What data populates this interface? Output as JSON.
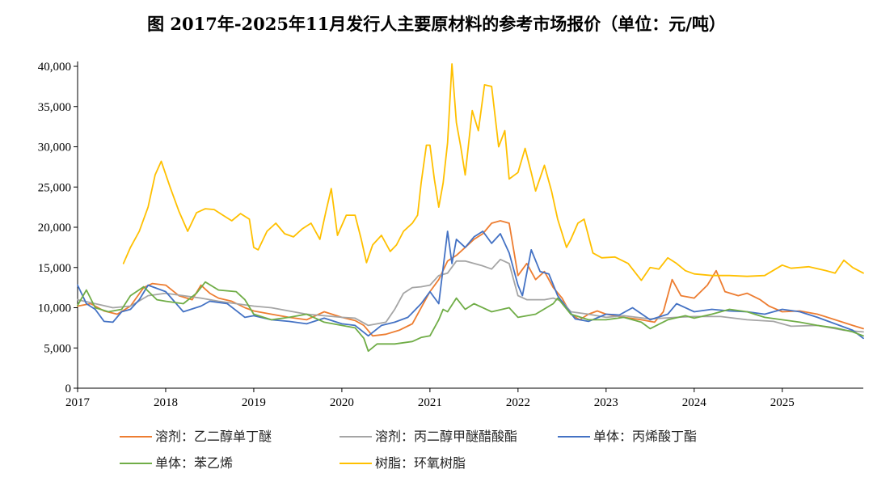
{
  "chart_data": {
    "type": "line",
    "title": "图 2017年-2025年11月发行人主要原材料的参考市场报价（单位：元/吨）",
    "xlabel": "",
    "ylabel": "",
    "ylim": [
      0,
      40000
    ],
    "xlim": [
      2017.0,
      2025.92
    ],
    "yticks": [
      0,
      5000,
      10000,
      15000,
      20000,
      25000,
      30000,
      35000,
      40000
    ],
    "ytick_labels": [
      "0",
      "5,000",
      "10,000",
      "15,000",
      "20,000",
      "25,000",
      "30,000",
      "35,000",
      "40,000"
    ],
    "xticks": [
      2017,
      2018,
      2019,
      2020,
      2021,
      2022,
      2023,
      2024,
      2025
    ],
    "xtick_labels": [
      "2017",
      "2018",
      "2019",
      "2020",
      "2021",
      "2022",
      "2023",
      "2024",
      "2025"
    ],
    "grid": false,
    "legend_position": "bottom",
    "series": [
      {
        "name": "溶剂：乙二醇单丁醚",
        "color": "#ed7d31",
        "x": [
          2017.0,
          2017.15,
          2017.3,
          2017.45,
          2017.6,
          2017.75,
          2017.85,
          2018.0,
          2018.15,
          2018.3,
          2018.4,
          2018.5,
          2018.6,
          2018.75,
          2018.9,
          2019.0,
          2019.2,
          2019.4,
          2019.6,
          2019.8,
          2020.0,
          2020.15,
          2020.25,
          2020.35,
          2020.5,
          2020.65,
          2020.8,
          2020.9,
          2021.0,
          2021.1,
          2021.2,
          2021.3,
          2021.4,
          2021.5,
          2021.6,
          2021.7,
          2021.8,
          2021.9,
          2022.0,
          2022.1,
          2022.2,
          2022.3,
          2022.4,
          2022.5,
          2022.6,
          2022.7,
          2022.8,
          2022.9,
          2023.0,
          2023.2,
          2023.4,
          2023.55,
          2023.65,
          2023.75,
          2023.85,
          2024.0,
          2024.15,
          2024.25,
          2024.35,
          2024.5,
          2024.6,
          2024.75,
          2024.85,
          2025.0,
          2025.2,
          2025.4,
          2025.6,
          2025.8,
          2025.92
        ],
        "values": [
          10200,
          10500,
          9600,
          9200,
          10200,
          12500,
          13000,
          12800,
          11500,
          11000,
          12800,
          11800,
          11200,
          10800,
          10000,
          9600,
          9200,
          8800,
          8500,
          9500,
          8800,
          8400,
          7800,
          6500,
          6700,
          7200,
          8000,
          10000,
          12000,
          13500,
          15800,
          16500,
          17500,
          18500,
          19200,
          20500,
          20800,
          20500,
          14000,
          15500,
          13500,
          14500,
          12500,
          11200,
          9200,
          8500,
          9200,
          9600,
          9200,
          8800,
          8500,
          8200,
          9500,
          13500,
          11500,
          11200,
          12800,
          14600,
          12000,
          11500,
          11800,
          11000,
          10200,
          9500,
          9600,
          9200,
          8500,
          7800,
          7400
        ]
      },
      {
        "name": "溶剂：丙二醇甲醚醋酸酯",
        "color": "#a5a5a5",
        "x": [
          2017.0,
          2017.2,
          2017.4,
          2017.6,
          2017.8,
          2018.0,
          2018.2,
          2018.4,
          2018.6,
          2018.8,
          2019.0,
          2019.2,
          2019.4,
          2019.6,
          2019.8,
          2020.0,
          2020.15,
          2020.3,
          2020.5,
          2020.6,
          2020.7,
          2020.8,
          2020.9,
          2021.0,
          2021.1,
          2021.2,
          2021.3,
          2021.4,
          2021.6,
          2021.7,
          2021.8,
          2021.9,
          2022.0,
          2022.1,
          2022.3,
          2022.4,
          2022.5,
          2022.6,
          2022.8,
          2023.0,
          2023.2,
          2023.5,
          2023.8,
          2024.0,
          2024.3,
          2024.6,
          2024.9,
          2025.1,
          2025.4,
          2025.7,
          2025.92
        ],
        "values": [
          11000,
          10500,
          10000,
          10200,
          11500,
          11800,
          11500,
          11200,
          10800,
          10500,
          10200,
          10000,
          9600,
          9200,
          9000,
          8800,
          8700,
          7800,
          8200,
          9800,
          11800,
          12500,
          12600,
          12800,
          14000,
          14300,
          15800,
          15800,
          15200,
          14800,
          16000,
          15500,
          11500,
          11000,
          11000,
          11200,
          10800,
          9500,
          9200,
          8800,
          9000,
          8600,
          8800,
          8900,
          8900,
          8500,
          8300,
          7700,
          7800,
          7200,
          7000
        ]
      },
      {
        "name": "单体：丙烯酸丁酯",
        "color": "#4472c4",
        "x": [
          2017.0,
          2017.1,
          2017.2,
          2017.3,
          2017.4,
          2017.5,
          2017.6,
          2017.7,
          2017.8,
          2018.0,
          2018.2,
          2018.4,
          2018.5,
          2018.7,
          2018.9,
          2019.0,
          2019.2,
          2019.4,
          2019.6,
          2019.8,
          2020.0,
          2020.15,
          2020.3,
          2020.45,
          2020.6,
          2020.75,
          2020.9,
          2021.0,
          2021.1,
          2021.2,
          2021.25,
          2021.3,
          2021.4,
          2021.5,
          2021.6,
          2021.7,
          2021.8,
          2021.9,
          2022.0,
          2022.05,
          2022.15,
          2022.25,
          2022.35,
          2022.45,
          2022.55,
          2022.65,
          2022.8,
          2023.0,
          2023.15,
          2023.3,
          2023.5,
          2023.7,
          2023.8,
          2024.0,
          2024.2,
          2024.4,
          2024.6,
          2024.8,
          2025.0,
          2025.2,
          2025.4,
          2025.6,
          2025.8,
          2025.92
        ],
        "values": [
          12800,
          10500,
          9800,
          8300,
          8200,
          9500,
          9800,
          11000,
          12800,
          12000,
          9500,
          10200,
          10800,
          10500,
          8800,
          9000,
          8500,
          8300,
          8000,
          8700,
          8000,
          7800,
          6500,
          7800,
          8200,
          8800,
          10500,
          12000,
          10500,
          19500,
          15500,
          18500,
          17500,
          18800,
          19500,
          18000,
          19200,
          16800,
          12800,
          11500,
          17200,
          14500,
          14200,
          11500,
          10000,
          8600,
          8300,
          9200,
          9100,
          10000,
          8500,
          9200,
          10500,
          9500,
          9800,
          9600,
          9500,
          9200,
          9800,
          9500,
          8800,
          8000,
          7200,
          6200
        ]
      },
      {
        "name": "单体：苯乙烯",
        "color": "#70ad47",
        "x": [
          2017.0,
          2017.1,
          2017.2,
          2017.35,
          2017.5,
          2017.6,
          2017.75,
          2017.9,
          2018.0,
          2018.2,
          2018.35,
          2018.45,
          2018.6,
          2018.8,
          2018.9,
          2019.0,
          2019.2,
          2019.4,
          2019.6,
          2019.8,
          2020.0,
          2020.15,
          2020.25,
          2020.3,
          2020.4,
          2020.6,
          2020.8,
          2020.9,
          2021.0,
          2021.1,
          2021.15,
          2021.2,
          2021.3,
          2021.4,
          2021.5,
          2021.7,
          2021.9,
          2022.0,
          2022.2,
          2022.4,
          2022.45,
          2022.6,
          2022.8,
          2023.0,
          2023.2,
          2023.4,
          2023.5,
          2023.7,
          2023.9,
          2024.0,
          2024.2,
          2024.4,
          2024.6,
          2024.8,
          2025.0,
          2025.2,
          2025.4,
          2025.6,
          2025.8,
          2025.92
        ],
        "values": [
          10300,
          12200,
          10000,
          9500,
          9800,
          11500,
          12600,
          11000,
          10800,
          10500,
          11800,
          13200,
          12200,
          12000,
          11000,
          9200,
          8500,
          8800,
          9200,
          8200,
          7800,
          7500,
          6200,
          4600,
          5500,
          5500,
          5800,
          6300,
          6500,
          8500,
          9800,
          9500,
          11200,
          9800,
          10500,
          9500,
          10000,
          8800,
          9200,
          10500,
          11200,
          9200,
          8500,
          8500,
          8800,
          8200,
          7400,
          8500,
          9000,
          8700,
          9200,
          9800,
          9500,
          8800,
          8500,
          8200,
          7800,
          7500,
          7000,
          6500
        ]
      },
      {
        "name": "树脂：环氧树脂",
        "color": "#ffc000",
        "x": [
          2017.52,
          2017.6,
          2017.7,
          2017.8,
          2017.88,
          2017.95,
          2018.05,
          2018.15,
          2018.25,
          2018.35,
          2018.45,
          2018.55,
          2018.65,
          2018.75,
          2018.85,
          2018.95,
          2019.0,
          2019.05,
          2019.15,
          2019.25,
          2019.35,
          2019.45,
          2019.55,
          2019.65,
          2019.75,
          2019.82,
          2019.88,
          2019.95,
          2020.05,
          2020.15,
          2020.22,
          2020.28,
          2020.35,
          2020.45,
          2020.55,
          2020.62,
          2020.7,
          2020.8,
          2020.86,
          2020.9,
          2020.96,
          2021.0,
          2021.05,
          2021.1,
          2021.15,
          2021.2,
          2021.25,
          2021.3,
          2021.35,
          2021.4,
          2021.48,
          2021.55,
          2021.62,
          2021.7,
          2021.78,
          2021.85,
          2021.9,
          2022.0,
          2022.08,
          2022.15,
          2022.2,
          2022.3,
          2022.38,
          2022.45,
          2022.55,
          2022.6,
          2022.68,
          2022.75,
          2022.85,
          2022.95,
          2023.1,
          2023.25,
          2023.4,
          2023.5,
          2023.6,
          2023.7,
          2023.8,
          2023.9,
          2024.0,
          2024.2,
          2024.4,
          2024.6,
          2024.8,
          2025.0,
          2025.1,
          2025.3,
          2025.5,
          2025.6,
          2025.7,
          2025.8,
          2025.92
        ],
        "values": [
          15500,
          17500,
          19500,
          22500,
          26500,
          28200,
          25000,
          22000,
          19500,
          21800,
          22300,
          22200,
          21500,
          20800,
          21700,
          21000,
          17500,
          17200,
          19500,
          20500,
          19200,
          18800,
          19800,
          20500,
          18500,
          22000,
          24800,
          19000,
          21500,
          21500,
          18500,
          15600,
          17800,
          19000,
          17000,
          17800,
          19500,
          20500,
          21500,
          25500,
          30200,
          30200,
          26000,
          22500,
          25500,
          30500,
          40300,
          33000,
          30000,
          26500,
          34500,
          32000,
          37700,
          37500,
          30000,
          32000,
          26000,
          26800,
          29800,
          26800,
          24500,
          27700,
          24500,
          21000,
          17500,
          18500,
          20500,
          21000,
          16800,
          16200,
          16300,
          15500,
          13400,
          15000,
          14800,
          16200,
          15500,
          14600,
          14200,
          14000,
          14000,
          13900,
          14000,
          15300,
          14900,
          15100,
          14600,
          14300,
          15900,
          15000,
          14300
        ]
      }
    ]
  }
}
